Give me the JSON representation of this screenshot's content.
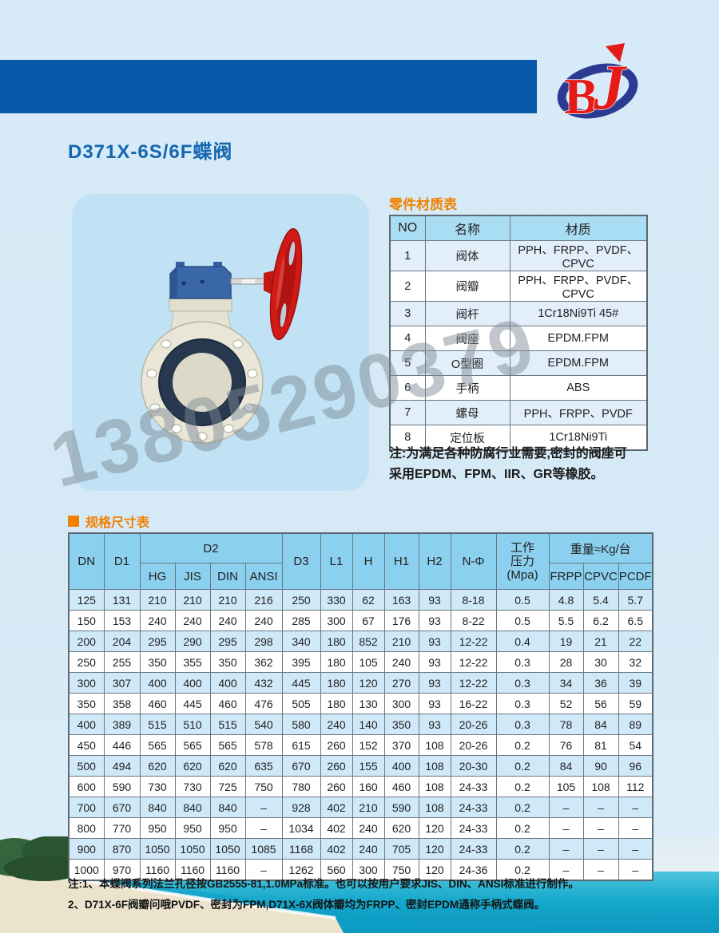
{
  "page": {
    "title": "D371X-6S/6F蝶阀",
    "watermark": "13805290379",
    "logo_text_b": "B",
    "logo_text_j": "J"
  },
  "colors": {
    "header_bar": "#0a58aa",
    "title_blue": "#1566b0",
    "accent_orange": "#f18101",
    "logo_red": "#e31c19",
    "logo_blue": "#2b3a92",
    "spec_header_bg": "#8bd0ef",
    "row_stripe_blue": "#cfe9f8",
    "sea_teal": "#14a7cb"
  },
  "materials_table": {
    "title": "零件材质表",
    "headers": [
      "NO",
      "名称",
      "材质"
    ],
    "rows": [
      [
        "1",
        "阀体",
        "PPH、FRPP、PVDF、CPVC"
      ],
      [
        "2",
        "阀瓣",
        "PPH、FRPP、PVDF、CPVC"
      ],
      [
        "3",
        "阀杆",
        "1Cr18Ni9Ti 45#"
      ],
      [
        "4",
        "阀座",
        "EPDM.FPM"
      ],
      [
        "5",
        "O型圈",
        "EPDM.FPM"
      ],
      [
        "6",
        "手柄",
        "ABS"
      ],
      [
        "7",
        "螺母",
        "PPH、FRPP、PVDF"
      ],
      [
        "8",
        "定位板",
        "1Cr18Ni9Ti"
      ]
    ],
    "note_line1": "注:为满足各种防腐行业需要,密封的阀座可",
    "note_line2": "采用EPDM、FPM、IIR、GR等橡胶。"
  },
  "spec_table": {
    "title": "规格尺寸表",
    "header": {
      "dn": "DN",
      "d1": "D1",
      "d2": "D2",
      "d2_subs": [
        "HG",
        "JIS",
        "DIN",
        "ANSI"
      ],
      "d3": "D3",
      "l1": "L1",
      "h": "H",
      "h1": "H1",
      "h2": "H2",
      "n_phi": "N-Φ",
      "pressure_lines": [
        "工作",
        "压力",
        "(Mpa)"
      ],
      "weight": "重量≈Kg/台",
      "weight_subs": [
        "FRPP",
        "CPVC",
        "PCDF"
      ]
    },
    "rows": [
      [
        "125",
        "131",
        "210",
        "210",
        "210",
        "216",
        "250",
        "330",
        "62",
        "163",
        "93",
        "8-18",
        "0.5",
        "4.8",
        "5.4",
        "5.7"
      ],
      [
        "150",
        "153",
        "240",
        "240",
        "240",
        "240",
        "285",
        "300",
        "67",
        "176",
        "93",
        "8-22",
        "0.5",
        "5.5",
        "6.2",
        "6.5"
      ],
      [
        "200",
        "204",
        "295",
        "290",
        "295",
        "298",
        "340",
        "180",
        "852",
        "210",
        "93",
        "12-22",
        "0.4",
        "19",
        "21",
        "22"
      ],
      [
        "250",
        "255",
        "350",
        "355",
        "350",
        "362",
        "395",
        "180",
        "105",
        "240",
        "93",
        "12-22",
        "0.3",
        "28",
        "30",
        "32"
      ],
      [
        "300",
        "307",
        "400",
        "400",
        "400",
        "432",
        "445",
        "180",
        "120",
        "270",
        "93",
        "12-22",
        "0.3",
        "34",
        "36",
        "39"
      ],
      [
        "350",
        "358",
        "460",
        "445",
        "460",
        "476",
        "505",
        "180",
        "130",
        "300",
        "93",
        "16-22",
        "0.3",
        "52",
        "56",
        "59"
      ],
      [
        "400",
        "389",
        "515",
        "510",
        "515",
        "540",
        "580",
        "240",
        "140",
        "350",
        "93",
        "20-26",
        "0.3",
        "78",
        "84",
        "89"
      ],
      [
        "450",
        "446",
        "565",
        "565",
        "565",
        "578",
        "615",
        "260",
        "152",
        "370",
        "108",
        "20-26",
        "0.2",
        "76",
        "81",
        "54"
      ],
      [
        "500",
        "494",
        "620",
        "620",
        "620",
        "635",
        "670",
        "260",
        "155",
        "400",
        "108",
        "20-30",
        "0.2",
        "84",
        "90",
        "96"
      ],
      [
        "600",
        "590",
        "730",
        "730",
        "725",
        "750",
        "780",
        "260",
        "160",
        "460",
        "108",
        "24-33",
        "0.2",
        "105",
        "108",
        "112"
      ],
      [
        "700",
        "670",
        "840",
        "840",
        "840",
        "–",
        "928",
        "402",
        "210",
        "590",
        "108",
        "24-33",
        "0.2",
        "–",
        "–",
        "–"
      ],
      [
        "800",
        "770",
        "950",
        "950",
        "950",
        "–",
        "1034",
        "402",
        "240",
        "620",
        "120",
        "24-33",
        "0.2",
        "–",
        "–",
        "–"
      ],
      [
        "900",
        "870",
        "1050",
        "1050",
        "1050",
        "1085",
        "1168",
        "402",
        "240",
        "705",
        "120",
        "24-33",
        "0.2",
        "–",
        "–",
        "–"
      ],
      [
        "1000",
        "970",
        "1160",
        "1160",
        "1160",
        "–",
        "1262",
        "560",
        "300",
        "750",
        "120",
        "24-36",
        "0.2",
        "–",
        "–",
        "–"
      ]
    ]
  },
  "footer_notes": {
    "line1": "注:1、本蝶阀系列法兰孔径按GB2555-81,1.0MPa标准。也可以按用户要求JIS、DIN、ANSI标准进行制作。",
    "line2": "2、D71X-6F阀瓣问哦PVDF、密封为FPM,D71X-6X阀体瓣均为FRPP、密封EPDM通称手柄式蝶阀。"
  }
}
